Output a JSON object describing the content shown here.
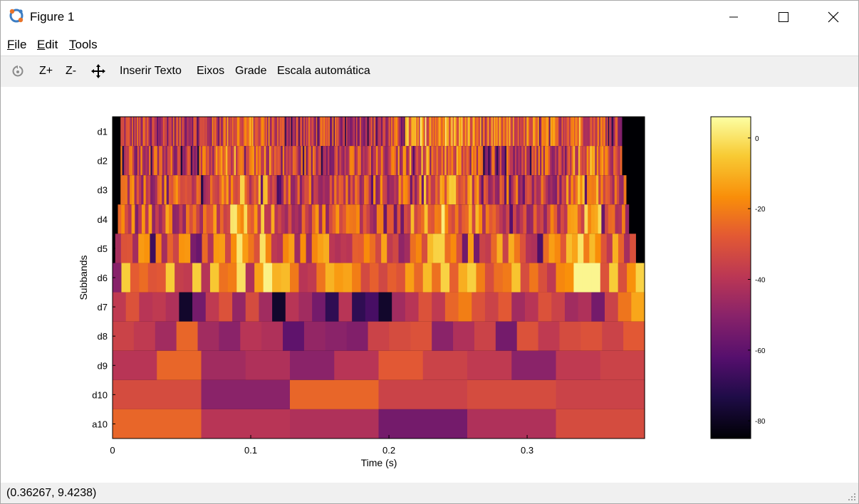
{
  "window": {
    "title": "Figure 1"
  },
  "menu": {
    "file": "File",
    "file_rest": "ile",
    "edit": "Edit",
    "edit_rest": "dit",
    "tools": "Tools",
    "tools_rest": "ools"
  },
  "toolbar": {
    "zoom_in": "Z+",
    "zoom_out": "Z-",
    "insert_text": "Inserir Texto",
    "axes": "Eixos",
    "grid": "Grade",
    "autoscale": "Escala automática"
  },
  "status": {
    "coordinates": "(0.36267, 9.4238)"
  },
  "chart_data": {
    "type": "heatmap",
    "xlabel": "Time (s)",
    "ylabel": "Subbands",
    "xlim": [
      0,
      0.385
    ],
    "x_ticks": [
      "0",
      "0.1",
      "0.2",
      "0.3"
    ],
    "x_tick_values": [
      0,
      0.1,
      0.2,
      0.3
    ],
    "rows": [
      "d1",
      "d2",
      "d3",
      "d4",
      "d5",
      "d6",
      "d7",
      "d8",
      "d9",
      "d10",
      "a10"
    ],
    "colorbar": {
      "range": [
        -85,
        6
      ],
      "ticks": [
        "0",
        "-20",
        "-40",
        "-60",
        "-80"
      ],
      "tick_values": [
        0,
        -20,
        -40,
        -60,
        -80
      ],
      "colormap": "inferno"
    },
    "rough_levels_db": {
      "d7": [
        -38,
        -30,
        -40,
        -38,
        -42,
        -78,
        -55,
        -38,
        -30,
        -48,
        -32,
        -45,
        -78,
        -40,
        -45,
        -55,
        -70,
        -40,
        -70,
        -65,
        -78,
        -45,
        -40,
        -30,
        -38,
        -25,
        -20,
        -30,
        -35,
        -28,
        -45,
        -40,
        -30,
        -35,
        -45,
        -42,
        -55,
        -35,
        -22,
        -12
      ],
      "d8": [
        -35,
        -38,
        -45,
        -25,
        -45,
        -50,
        -40,
        -42,
        -60,
        -48,
        -50,
        -52,
        -35,
        -32,
        -30,
        -50,
        -42,
        -35,
        -55,
        -30,
        -38,
        -32,
        -30,
        -35,
        -28
      ],
      "d9": [
        -40,
        -25,
        -45,
        -42,
        -50,
        -40,
        -28,
        -35,
        -38,
        -50,
        -38,
        -35
      ],
      "d10": [
        -32,
        -50,
        -25,
        -35,
        -32,
        -35
      ],
      "a10": [
        -25,
        -40,
        -42,
        -55,
        -42,
        -32
      ]
    }
  }
}
